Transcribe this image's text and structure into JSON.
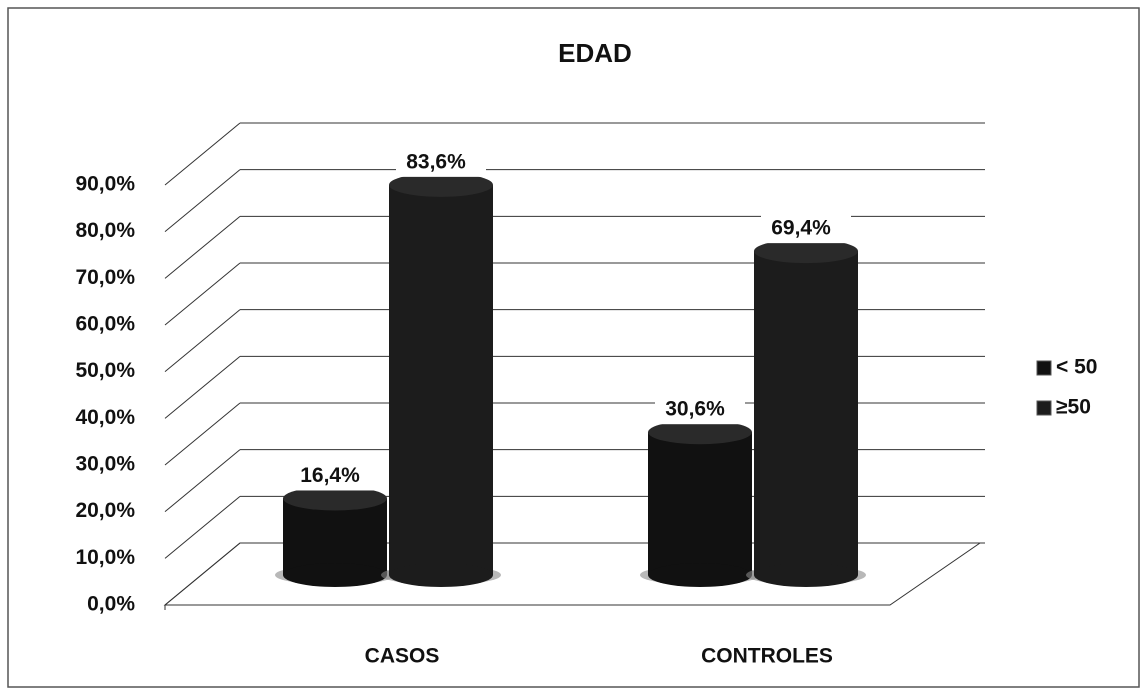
{
  "chart_data": {
    "type": "bar3d",
    "title": "EDAD",
    "categories": [
      "CASOS",
      "CONTROLES"
    ],
    "series": [
      {
        "name": "< 50",
        "color": "#111111",
        "values": [
          16.4,
          30.6
        ],
        "value_labels": [
          "16,4%",
          "30,6%"
        ]
      },
      {
        "name": "≥50",
        "color": "#1c1c1c",
        "values": [
          83.6,
          69.4
        ],
        "value_labels": [
          "83,6%",
          "69,4%"
        ]
      }
    ],
    "ylim": [
      0,
      90
    ],
    "yticks": [
      {
        "value": 0,
        "label": "0,0%"
      },
      {
        "value": 10,
        "label": "10,0%"
      },
      {
        "value": 20,
        "label": "20,0%"
      },
      {
        "value": 30,
        "label": "30,0%"
      },
      {
        "value": 40,
        "label": "40,0%"
      },
      {
        "value": 50,
        "label": "50,0%"
      },
      {
        "value": 60,
        "label": "60,0%"
      },
      {
        "value": 70,
        "label": "70,0%"
      },
      {
        "value": 80,
        "label": "80,0%"
      },
      {
        "value": 90,
        "label": "90,0%"
      }
    ],
    "grid": true,
    "legend": "right"
  }
}
